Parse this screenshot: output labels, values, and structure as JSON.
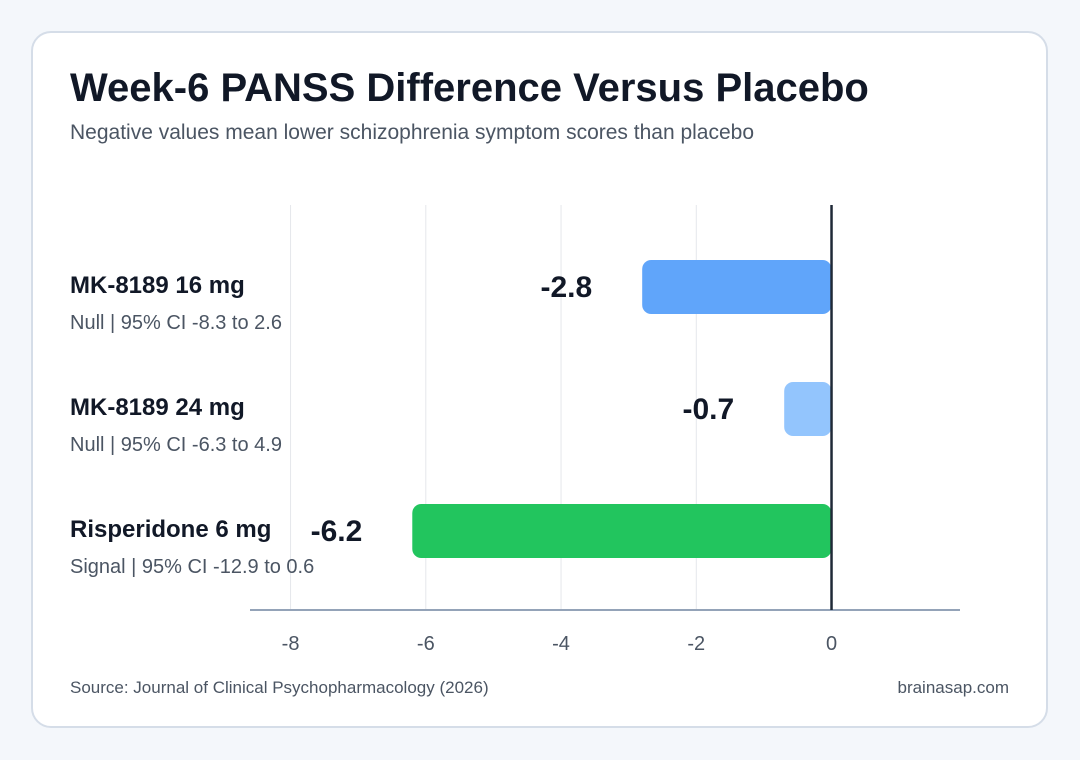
{
  "chart_data": {
    "type": "bar",
    "orientation": "horizontal",
    "title": "Week-6 PANSS Difference Versus Placebo",
    "subtitle": "Negative values mean lower schizophrenia symptom scores than placebo",
    "categories": [
      "MK-8189 16 mg",
      "MK-8189 24 mg",
      "Risperidone 6 mg"
    ],
    "series": [
      {
        "values": [
          -2.8,
          -0.7,
          -6.2
        ],
        "colors": [
          "#60a5fa",
          "#93c5fd",
          "#22c55e"
        ]
      }
    ],
    "value_labels": [
      "-2.8",
      "-0.7",
      "-6.2"
    ],
    "annotations": [
      "Null | 95% CI -8.3 to 2.6",
      "Null | 95% CI -6.3 to 4.9",
      "Signal | 95% CI -12.9 to 0.6"
    ],
    "x_ticks": [
      -8,
      -6,
      -4,
      -2,
      0
    ],
    "x_tick_labels": [
      "-8",
      "-6",
      "-4",
      "-2",
      "0"
    ],
    "xlim": [
      -8.6,
      1.9
    ],
    "reference_line": 0,
    "grid": true,
    "xlabel": "",
    "ylabel": ""
  },
  "footer": {
    "source": "Source: Journal of Clinical Psychopharmacology (2026)",
    "brand": "brainasap.com"
  }
}
